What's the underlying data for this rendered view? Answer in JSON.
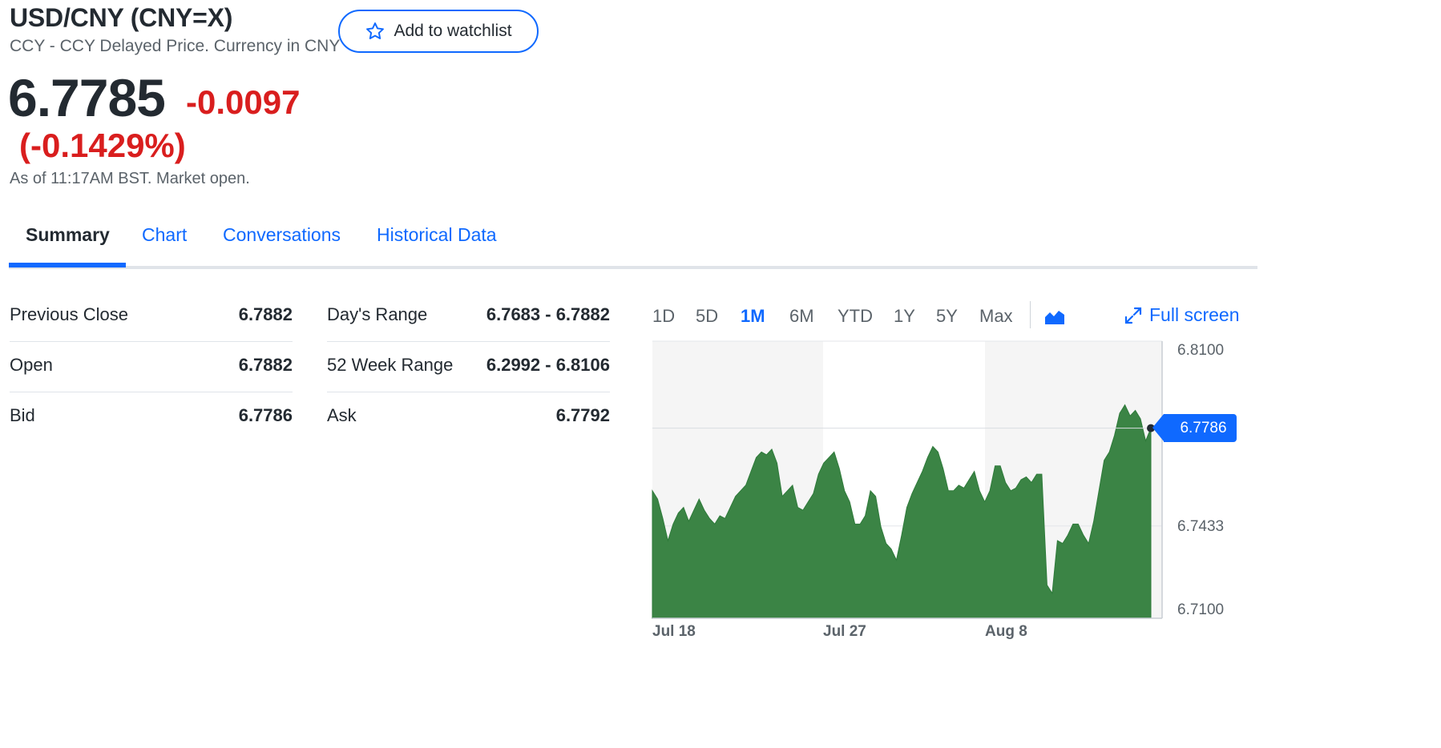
{
  "quote": {
    "title": "USD/CNY (CNY=X)",
    "subtitle": "CCY - CCY Delayed Price. Currency in CNY",
    "watchlist_label": "Add to watchlist",
    "price": "6.7785",
    "change": "-0.0097",
    "change_pct": "(-0.1429%)",
    "as_of": "As of 11:17AM BST. Market open."
  },
  "tabs": [
    "Summary",
    "Chart",
    "Conversations",
    "Historical Data"
  ],
  "active_tab": "Summary",
  "stats_left": [
    {
      "label": "Previous Close",
      "value": "6.7882"
    },
    {
      "label": "Open",
      "value": "6.7882"
    },
    {
      "label": "Bid",
      "value": "6.7786"
    }
  ],
  "stats_right": [
    {
      "label": "Day's Range",
      "value": "6.7683 - 6.7882"
    },
    {
      "label": "52 Week Range",
      "value": "6.2992 - 6.8106"
    },
    {
      "label": "Ask",
      "value": "6.7792"
    }
  ],
  "ranges": [
    "1D",
    "5D",
    "1M",
    "6M",
    "YTD",
    "1Y",
    "5Y",
    "Max"
  ],
  "active_range": "1M",
  "fullscreen_label": "Full screen",
  "colors": {
    "accent": "#0f69ff",
    "negative": "#d91e1e",
    "area_fill": "#3b8445",
    "band": "#f5f5f5"
  },
  "icons": {
    "watchlist": "star-outline-icon",
    "chart_type": "area-chart-icon",
    "fullscreen": "expand-arrows-icon"
  },
  "chart_data": {
    "type": "area",
    "x_ticks": [
      "Jul 18",
      "Jul 27",
      "Aug 8"
    ],
    "y_ticks": [
      "6.8100",
      "6.7433",
      "6.7100"
    ],
    "ylim": [
      6.71,
      6.81
    ],
    "current_label": "6.7786",
    "current_value": 6.7786,
    "values": [
      6.756,
      6.753,
      6.746,
      6.738,
      6.744,
      6.748,
      6.75,
      6.745,
      6.749,
      6.753,
      6.749,
      6.746,
      6.744,
      6.747,
      6.746,
      6.75,
      6.754,
      6.756,
      6.758,
      6.763,
      6.768,
      6.77,
      6.769,
      6.771,
      6.766,
      6.754,
      6.756,
      6.758,
      6.75,
      6.749,
      6.752,
      6.755,
      6.762,
      6.766,
      6.768,
      6.77,
      6.764,
      6.756,
      6.752,
      6.744,
      6.744,
      6.747,
      6.756,
      6.754,
      6.743,
      6.737,
      6.735,
      6.731,
      6.74,
      6.75,
      6.755,
      6.759,
      6.763,
      6.768,
      6.772,
      6.77,
      6.764,
      6.756,
      6.756,
      6.758,
      6.757,
      6.76,
      6.763,
      6.756,
      6.752,
      6.756,
      6.765,
      6.765,
      6.759,
      6.756,
      6.757,
      6.76,
      6.761,
      6.759,
      6.762,
      6.762,
      6.722,
      6.719,
      6.738,
      6.737,
      6.74,
      6.744,
      6.744,
      6.74,
      6.737,
      6.745,
      6.756,
      6.767,
      6.77,
      6.776,
      6.784,
      6.787,
      6.783,
      6.785,
      6.782,
      6.774,
      6.7786
    ]
  }
}
